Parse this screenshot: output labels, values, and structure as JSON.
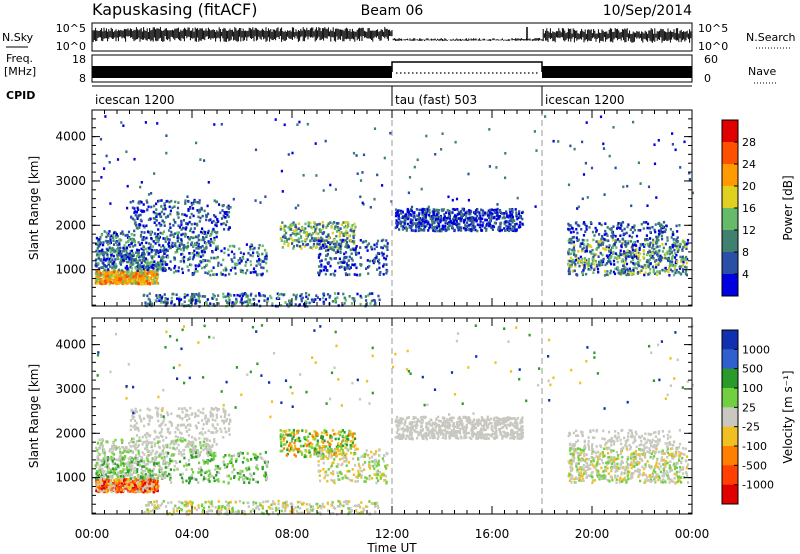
{
  "header": {
    "station": "Kapuskasing (fitACF)",
    "beam": "Beam 06",
    "date": "10/Sep/2014"
  },
  "top_panels": {
    "nsky_label": "N.Sky",
    "nsearch_label": "N.Search",
    "nsky_ticks": [
      "10^5",
      "10^0"
    ],
    "nsearch_ticks": [
      "10^5",
      "10^0"
    ],
    "freq_label": "Freq.",
    "freq_unit": "[MHz]",
    "freq_ticks": [
      "18",
      "8"
    ],
    "nave_label": "Nave",
    "nave_ticks": [
      "60",
      "0"
    ],
    "cpid_label": "CPID"
  },
  "modes": [
    {
      "name": "icescan 1200",
      "start_hour": 0
    },
    {
      "name": "tau (fast) 503",
      "start_hour": 12
    },
    {
      "name": "icescan 1200",
      "start_hour": 18
    }
  ],
  "chart_data": [
    {
      "type": "heatmap",
      "title": "",
      "ylabel": "Slant Range [km]",
      "xlabel": "",
      "xlim": [
        0,
        24
      ],
      "ylim": [
        180,
        4600
      ],
      "y_ticks": [
        "1000",
        "2000",
        "3000",
        "4000"
      ],
      "colorbar_label": "Power [dB]",
      "colorbar_ticks": [
        "4",
        "8",
        "12",
        "16",
        "20",
        "24",
        "28"
      ],
      "colors": [
        "#0000e0",
        "#2a4fa6",
        "#3f8070",
        "#66bb6a",
        "#e0d020",
        "#ff9a00",
        "#ff5000",
        "#e00000"
      ]
    },
    {
      "type": "heatmap",
      "title": "",
      "ylabel": "Slant Range [km]",
      "xlabel": "Time UT",
      "x_ticks": [
        "00:00",
        "04:00",
        "08:00",
        "12:00",
        "16:00",
        "20:00",
        "00:00"
      ],
      "xlim": [
        0,
        24
      ],
      "ylim": [
        180,
        4600
      ],
      "y_ticks": [
        "1000",
        "2000",
        "3000",
        "4000"
      ],
      "colorbar_label": "Velocity [m s⁻¹]",
      "colorbar_ticks": [
        "1000",
        "500",
        "100",
        "25",
        "-25",
        "-100",
        "-500",
        "-1000"
      ],
      "colors": [
        "#1030b0",
        "#3060d0",
        "#2a9a2a",
        "#70d040",
        "#c8c8c0",
        "#f0c020",
        "#ff8000",
        "#ff4000",
        "#e00000"
      ]
    }
  ]
}
